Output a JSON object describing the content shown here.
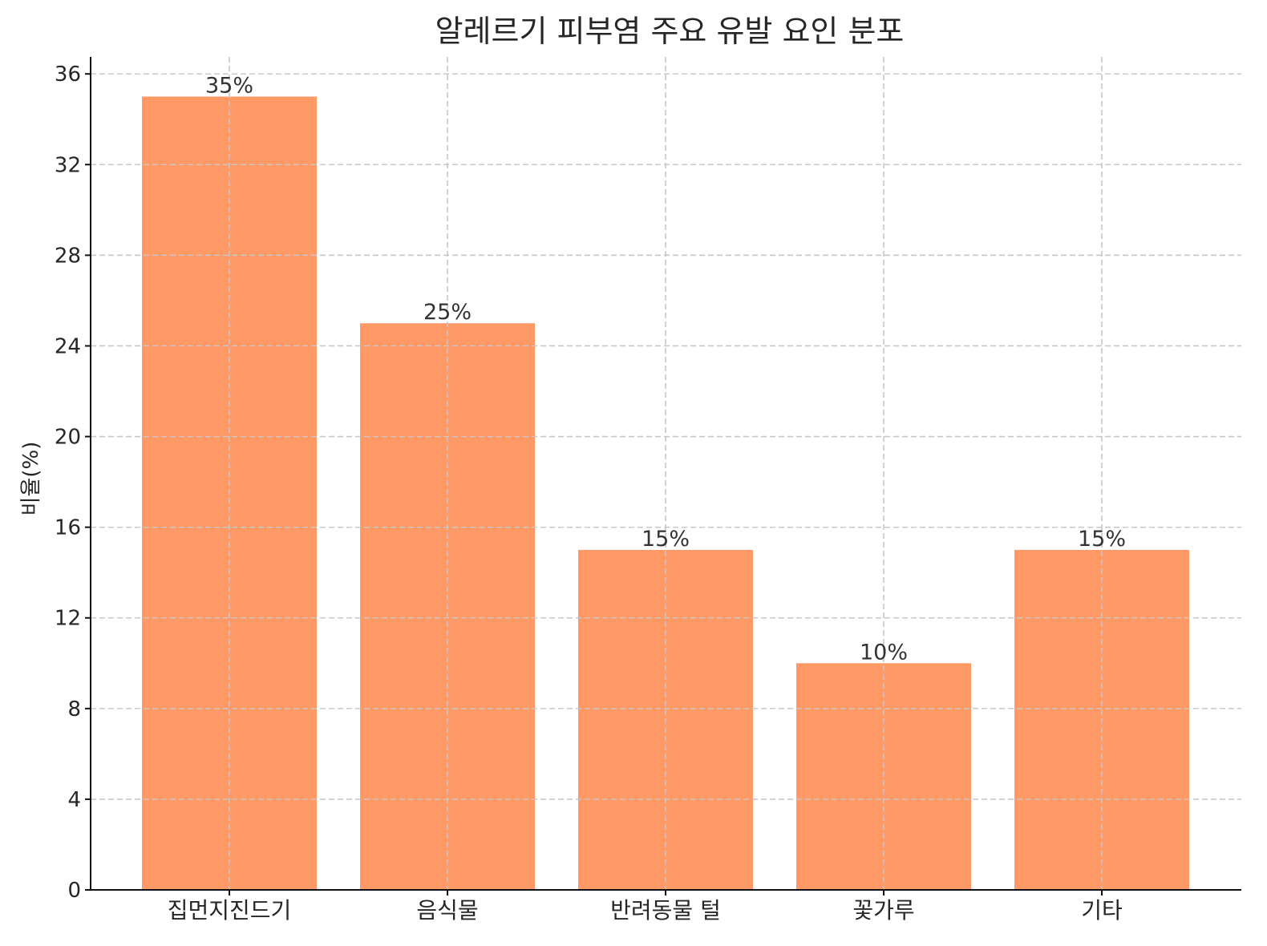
{
  "chart_data": {
    "type": "bar",
    "title": "알레르기 피부염 주요 유발 요인 분포",
    "xlabel": "",
    "ylabel": "비율(%)",
    "categories": [
      "집먼지진드기",
      "음식물",
      "반려동물 털",
      "꽃가루",
      "기타"
    ],
    "values": [
      35,
      25,
      15,
      10,
      15
    ],
    "data_labels": [
      "35%",
      "25%",
      "15%",
      "10%",
      "15%"
    ],
    "ylim": [
      0,
      36.75
    ],
    "yticks": [
      0,
      4,
      8,
      12,
      16,
      20,
      24,
      28,
      32,
      36
    ],
    "grid": true,
    "bar_color": "#ff9966"
  }
}
